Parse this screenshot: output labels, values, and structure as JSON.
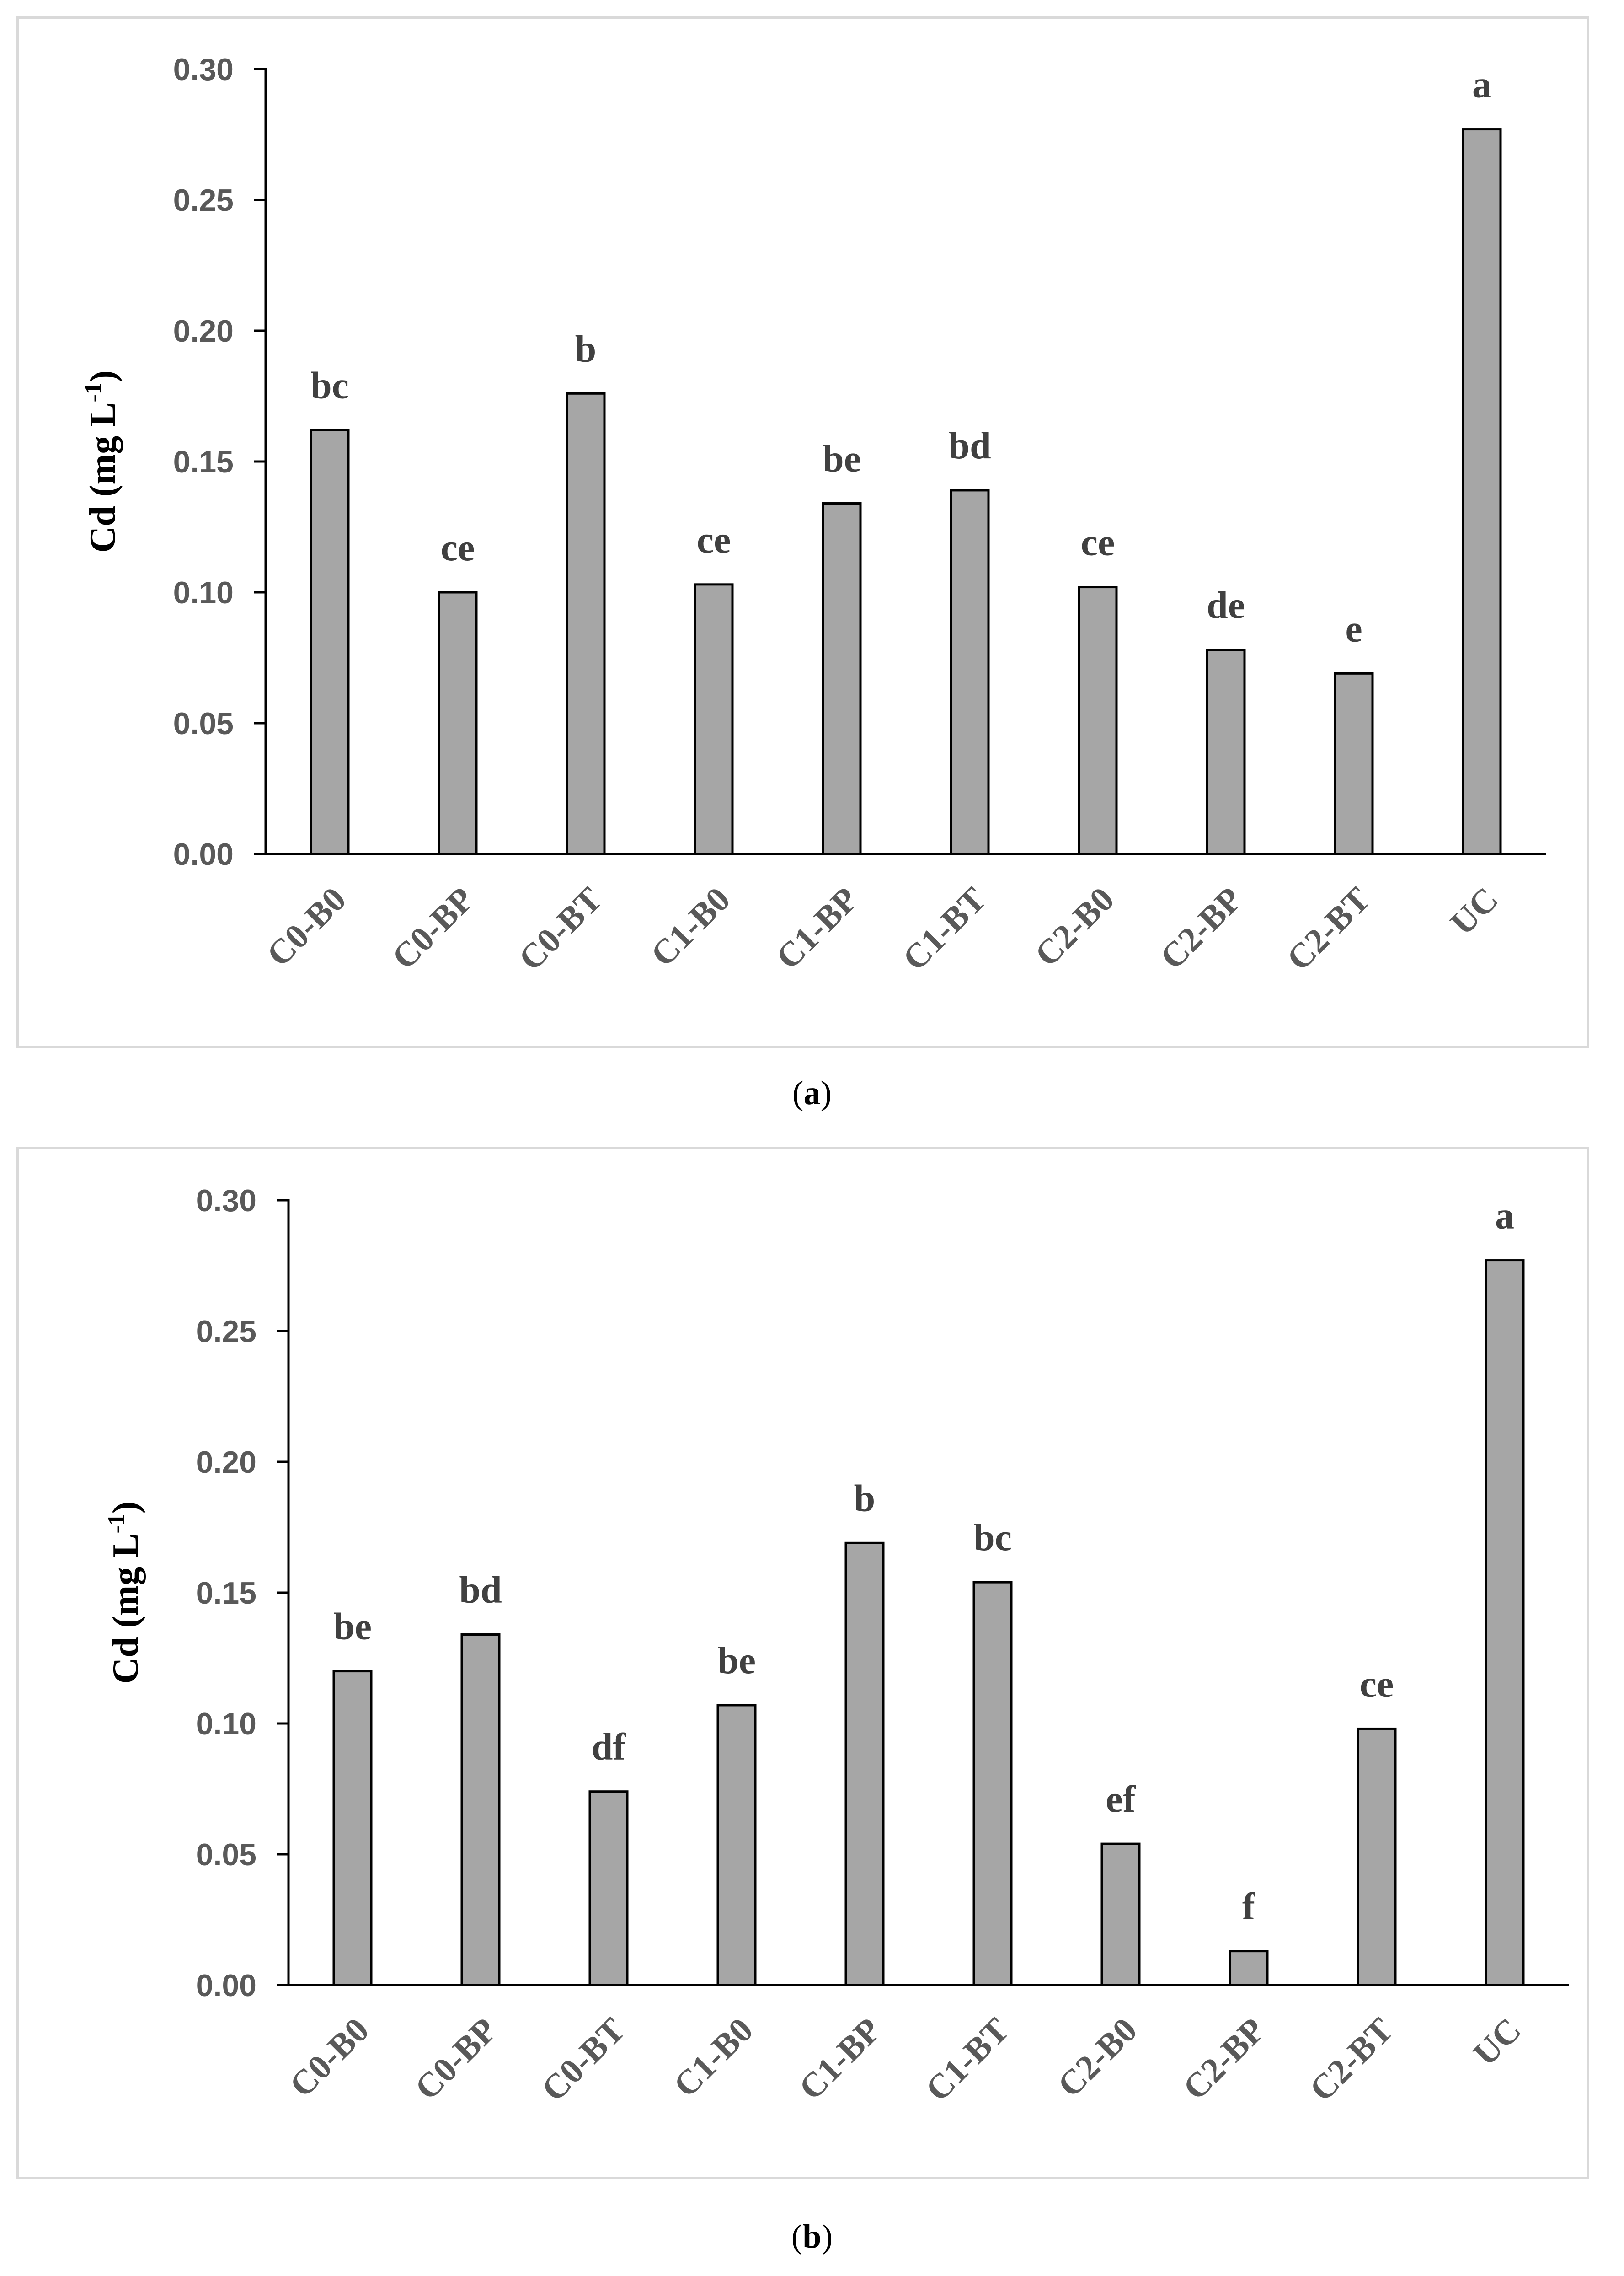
{
  "chart_data": [
    {
      "panel": "a",
      "type": "bar",
      "caption": "a",
      "ylabel": "Cd (mg L",
      "ylabel_sup": "-1",
      "ylabel_close": ")",
      "ylim": [
        0,
        0.3
      ],
      "yticks": [
        "0.00",
        "0.05",
        "0.10",
        "0.15",
        "0.20",
        "0.25",
        "0.30"
      ],
      "categories": [
        "C0-B0",
        "C0-BP",
        "C0-BT",
        "C1-B0",
        "C1-BP",
        "C1-BT",
        "C2-B0",
        "C2-BP",
        "C2-BT",
        "UC"
      ],
      "values": [
        0.162,
        0.1,
        0.176,
        0.103,
        0.134,
        0.139,
        0.102,
        0.078,
        0.069,
        0.277
      ],
      "letters": [
        "bc",
        "ce",
        "b",
        "ce",
        "be",
        "bd",
        "ce",
        "de",
        "e",
        "a"
      ],
      "colors": {
        "bar": "#a6a6a6",
        "edge": "#000000"
      }
    },
    {
      "panel": "b",
      "type": "bar",
      "caption": "b",
      "ylabel": "Cd (mg L",
      "ylabel_sup": "-1",
      "ylabel_close": ")",
      "ylim": [
        0,
        0.3
      ],
      "yticks": [
        "0.00",
        "0.05",
        "0.10",
        "0.15",
        "0.20",
        "0.25",
        "0.30"
      ],
      "categories": [
        "C0-B0",
        "C0-BP",
        "C0-BT",
        "C1-B0",
        "C1-BP",
        "C1-BT",
        "C2-B0",
        "C2-BP",
        "C2-BT",
        "UC"
      ],
      "values": [
        0.12,
        0.134,
        0.074,
        0.107,
        0.169,
        0.154,
        0.054,
        0.013,
        0.098,
        0.277
      ],
      "letters": [
        "be",
        "bd",
        "df",
        "be",
        "b",
        "bc",
        "ef",
        "f",
        "ce",
        "a"
      ],
      "colors": {
        "bar": "#a6a6a6",
        "edge": "#000000"
      }
    }
  ]
}
